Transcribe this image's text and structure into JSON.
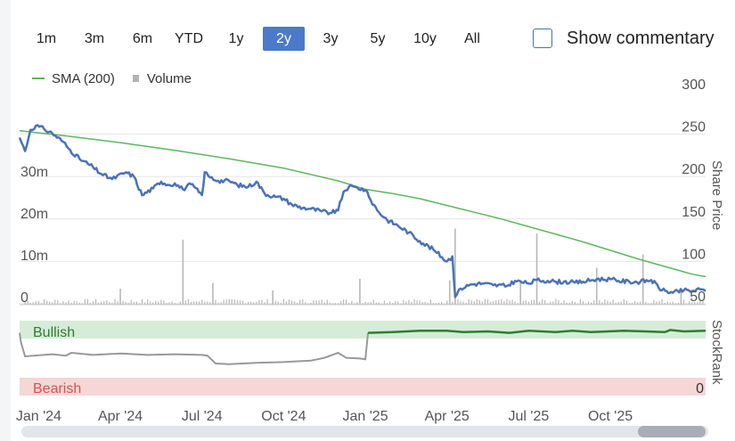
{
  "range_buttons": [
    {
      "label": "1m",
      "active": false
    },
    {
      "label": "3m",
      "active": false
    },
    {
      "label": "6m",
      "active": false
    },
    {
      "label": "YTD",
      "active": false
    },
    {
      "label": "1y",
      "active": false
    },
    {
      "label": "2y",
      "active": true
    },
    {
      "label": "3y",
      "active": false
    },
    {
      "label": "5y",
      "active": false
    },
    {
      "label": "10y",
      "active": false
    },
    {
      "label": "All",
      "active": false
    }
  ],
  "commentary": {
    "label": "Show commentary",
    "checked": false
  },
  "legend": {
    "sma_label": "SMA (200)",
    "volume_label": "Volume"
  },
  "colors": {
    "price": "#4a72b8",
    "sma": "#5cb85c",
    "volume": "#b8b8b8",
    "bullish_band": "#d6ecd8",
    "bearish_band": "#f6d6d6",
    "rank_bull": "#2e7d32",
    "rank_bear": "#999999",
    "bullish_text": "#2e7d32",
    "bearish_text": "#d9534f",
    "active_button": "#4a7ac9"
  },
  "chart_data": {
    "type": "line",
    "title": "",
    "x_axis": {
      "tick_labels": [
        "Jan '24",
        "Apr '24",
        "Jul '24",
        "Oct '24",
        "Jan '25",
        "Apr '25",
        "Jul '25",
        "Oct '25"
      ],
      "tick_months": [
        0,
        3,
        6,
        9,
        12,
        15,
        18,
        21
      ],
      "range_months": [
        -0.7,
        24.5
      ]
    },
    "price_axis": {
      "label": "Share Price",
      "ticks": [
        300,
        250,
        200,
        150,
        100,
        50
      ],
      "ylim": [
        50,
        300
      ]
    },
    "volume_axis": {
      "label": "",
      "ticks": [
        "0",
        "10m",
        "20m",
        "30m"
      ],
      "values_m": [
        0,
        10,
        20,
        30
      ]
    },
    "series": [
      {
        "name": "Share Price",
        "t": [
          -0.7,
          -0.5,
          -0.3,
          -0.1,
          0.2,
          0.5,
          0.9,
          1.1,
          1.5,
          2.0,
          2.3,
          2.7,
          3.2,
          3.5,
          3.8,
          4.2,
          4.5,
          4.8,
          5.0,
          5.3,
          5.6,
          6.0,
          6.1,
          6.3,
          6.6,
          7.0,
          7.3,
          7.7,
          8.0,
          8.3,
          8.7,
          9.0,
          9.3,
          9.7,
          10.0,
          10.4,
          10.7,
          11.0,
          11.2,
          11.4,
          11.7,
          12.0,
          12.2,
          12.5,
          12.8,
          13.2,
          13.6,
          14.0,
          14.5,
          15.0,
          15.2,
          15.3,
          15.5,
          15.9,
          16.3,
          16.7,
          17.2,
          17.5,
          18.0,
          18.3,
          18.7,
          19.0,
          19.3,
          19.7,
          20.0,
          20.5,
          21.0,
          21.3,
          21.7,
          22.1,
          22.5,
          22.9,
          23.3,
          23.7,
          24.0,
          24.3,
          24.5
        ],
        "values": [
          246,
          230,
          255,
          260,
          256,
          251,
          241,
          233,
          221,
          211,
          203,
          197,
          205,
          200,
          178,
          186,
          194,
          190,
          192,
          185,
          191,
          178,
          205,
          199,
          195,
          195,
          190,
          188,
          194,
          180,
          176,
          174,
          167,
          163,
          162,
          159,
          157,
          160,
          182,
          188,
          187,
          184,
          172,
          158,
          149,
          142,
          134,
          124,
          114,
          100,
          106,
          58,
          68,
          73,
          74,
          72,
          71,
          77,
          74,
          78,
          77,
          76,
          76,
          75,
          76,
          79,
          79,
          77,
          76,
          76,
          78,
          66,
          63,
          66,
          65,
          67,
          65
        ]
      },
      {
        "name": "SMA (200)",
        "t": [
          -0.7,
          1,
          3,
          5,
          7,
          9,
          11,
          12,
          13,
          14,
          15,
          16,
          17,
          18,
          19,
          20,
          21,
          22,
          23,
          24,
          24.5
        ],
        "values": [
          254,
          248,
          240,
          231,
          221,
          210,
          195,
          185,
          180,
          174,
          166,
          158,
          150,
          141,
          132,
          123,
          113,
          103,
          94,
          85,
          82
        ]
      },
      {
        "name": "Volume",
        "unit": "millions",
        "t": [
          3.0,
          5.3,
          6.4,
          8.6,
          11.8,
          15.1,
          15.3,
          17.7,
          18.3,
          20.5,
          22.2,
          23.6
        ],
        "values": [
          3.8,
          15.5,
          5.2,
          3.4,
          6.2,
          5.8,
          18.2,
          5.6,
          17.0,
          8.8,
          12.0,
          3.2
        ]
      }
    ],
    "stockrank": {
      "label": "StockRank",
      "band_labels": {
        "bullish": "Bullish",
        "bearish": "Bearish"
      },
      "tick_label": "0",
      "ylim": [
        0,
        100
      ],
      "t": [
        -0.7,
        -0.65,
        -0.5,
        0.5,
        1,
        1.2,
        2,
        3,
        4,
        5,
        6,
        6.2,
        6.5,
        7,
        8,
        9,
        10,
        10.5,
        11,
        11.3,
        11.8,
        12.0,
        12.1,
        13,
        14,
        15,
        15.6,
        16.5,
        17.3,
        18,
        19,
        19.6,
        20.3,
        21.5,
        22.3,
        23,
        23.2,
        23.7,
        24.5
      ],
      "values": [
        83,
        70,
        50,
        53,
        51,
        55,
        52,
        54,
        52,
        53,
        52,
        51,
        40,
        39,
        41,
        42,
        44,
        48,
        55,
        48,
        47,
        46,
        83,
        84,
        86,
        86,
        84,
        85,
        83,
        86,
        84,
        86,
        84,
        86,
        85,
        84,
        87,
        85,
        86
      ]
    }
  }
}
